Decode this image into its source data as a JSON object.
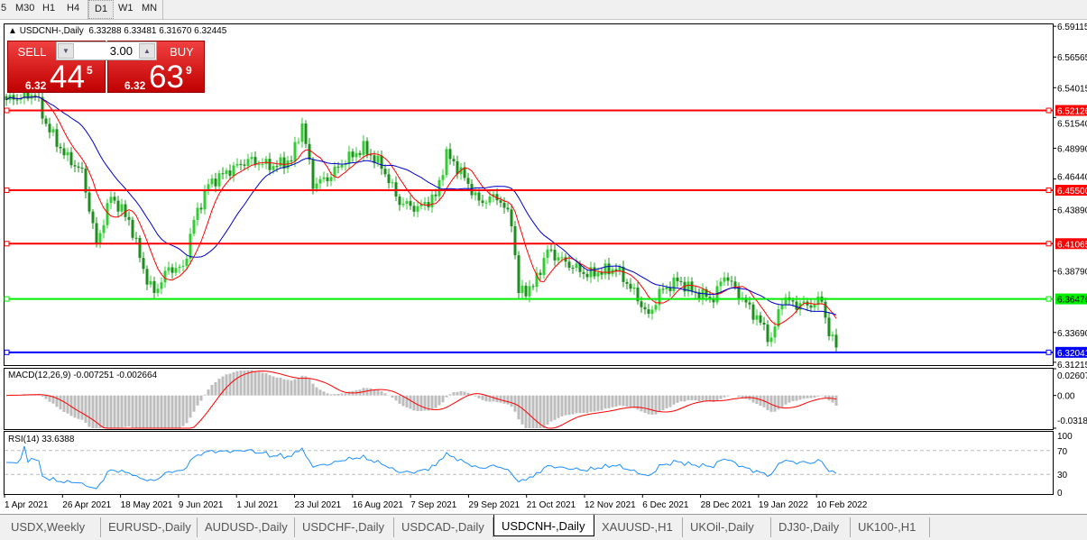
{
  "timeframes": [
    "5",
    "M30",
    "H1",
    "H4",
    "D1",
    "W1",
    "MN"
  ],
  "active_timeframe": "D1",
  "header": {
    "symbol": "USDCNH-,Daily",
    "ohlc": "6.33288 6.33481 6.31670 6.32445"
  },
  "trade_panel": {
    "sell_label": "SELL",
    "buy_label": "BUY",
    "quantity": "3.00",
    "sell_price": {
      "prefix": "6.32",
      "big": "44",
      "sup": "5"
    },
    "buy_price": {
      "prefix": "6.32",
      "big": "63",
      "sup": "9"
    }
  },
  "colors": {
    "bull": "#32cd32",
    "bear": "#1e8f1e",
    "ma_fast": "#ff0000",
    "ma_slow": "#0000cc",
    "macd_hist": "#bdbdbd",
    "macd_signal": "#ff0000",
    "rsi": "#1e90ff"
  },
  "chart_data": [
    {
      "type": "candlestick",
      "symbol": "USDCNH-",
      "timeframe": "Daily",
      "x_tick_labels": [
        "1 Apr 2021",
        "26 Apr 2021",
        "18 May 2021",
        "9 Jun 2021",
        "1 Jul 2021",
        "23 Jul 2021",
        "16 Aug 2021",
        "7 Sep 2021",
        "29 Sep 2021",
        "21 Oct 2021",
        "12 Nov 2021",
        "6 Dec 2021",
        "28 Dec 2021",
        "19 Jan 2022",
        "10 Feb 2022"
      ],
      "y_tick_labels": [
        "6.59115",
        "6.56565",
        "6.54015",
        "6.51540",
        "6.48990",
        "6.46440",
        "6.43890",
        "6.38790",
        "6.33690",
        "6.31215"
      ],
      "ylim": [
        6.3098,
        6.5935
      ],
      "close_keypoints_by_bar": [
        [
          0,
          6.53
        ],
        [
          8,
          6.535
        ],
        [
          11,
          6.51
        ],
        [
          16,
          6.485
        ],
        [
          21,
          6.47
        ],
        [
          25,
          6.41
        ],
        [
          29,
          6.45
        ],
        [
          34,
          6.43
        ],
        [
          39,
          6.38
        ],
        [
          41,
          6.37
        ],
        [
          45,
          6.39
        ],
        [
          49,
          6.39
        ],
        [
          52,
          6.43
        ],
        [
          56,
          6.46
        ],
        [
          61,
          6.47
        ],
        [
          67,
          6.48
        ],
        [
          74,
          6.475
        ],
        [
          79,
          6.48
        ],
        [
          82,
          6.51
        ],
        [
          85,
          6.46
        ],
        [
          89,
          6.465
        ],
        [
          94,
          6.48
        ],
        [
          99,
          6.49
        ],
        [
          104,
          6.475
        ],
        [
          109,
          6.445
        ],
        [
          114,
          6.44
        ],
        [
          119,
          6.45
        ],
        [
          122,
          6.485
        ],
        [
          126,
          6.47
        ],
        [
          131,
          6.445
        ],
        [
          136,
          6.45
        ],
        [
          140,
          6.43
        ],
        [
          142,
          6.37
        ],
        [
          146,
          6.375
        ],
        [
          150,
          6.405
        ],
        [
          155,
          6.395
        ],
        [
          161,
          6.385
        ],
        [
          169,
          6.39
        ],
        [
          174,
          6.37
        ],
        [
          178,
          6.35
        ],
        [
          181,
          6.37
        ],
        [
          186,
          6.38
        ],
        [
          191,
          6.37
        ],
        [
          196,
          6.365
        ],
        [
          199,
          6.385
        ],
        [
          204,
          6.365
        ],
        [
          209,
          6.345
        ],
        [
          212,
          6.33
        ],
        [
          215,
          6.365
        ],
        [
          219,
          6.36
        ],
        [
          224,
          6.36
        ],
        [
          226,
          6.365
        ],
        [
          228,
          6.335
        ],
        [
          230,
          6.32445
        ]
      ],
      "horizontal_levels": [
        {
          "price": "6.52126",
          "color": "#ff0000"
        },
        {
          "price": "6.45500",
          "color": "#ff0000"
        },
        {
          "price": "6.41065",
          "color": "#ff0000"
        },
        {
          "price": "6.36476",
          "color": "#00ee00"
        },
        {
          "price": "6.32041",
          "color": "#0000ff"
        }
      ],
      "current_price": "6.32445",
      "moving_averages": [
        {
          "color": "#ff0000"
        },
        {
          "color": "#0000cc"
        }
      ]
    },
    {
      "type": "bar+line",
      "title": "MACD(12,26,9) -0.007251 -0.002664",
      "y_tick_labels": [
        "0.02607",
        "0.00",
        "-0.03187"
      ],
      "ylim": [
        -0.03187,
        0.02607
      ]
    },
    {
      "type": "line",
      "title": "RSI(14) 33.6388",
      "y_tick_labels": [
        "100",
        "70",
        "30",
        "0"
      ],
      "ylim": [
        0,
        100
      ],
      "levels": [
        70,
        30
      ]
    }
  ],
  "tabs": [
    {
      "label": "USDX,Weekly"
    },
    {
      "label": "EURUSD-,Daily"
    },
    {
      "label": "AUDUSD-,Daily"
    },
    {
      "label": "USDCHF-,Daily"
    },
    {
      "label": "USDCAD-,Daily"
    },
    {
      "label": "USDCNH-,Daily",
      "active": true
    },
    {
      "label": "XAUUSD-,H1"
    },
    {
      "label": "UKOil-,Daily"
    },
    {
      "label": "DJ30-,Daily"
    },
    {
      "label": "UK100-,H1"
    }
  ]
}
